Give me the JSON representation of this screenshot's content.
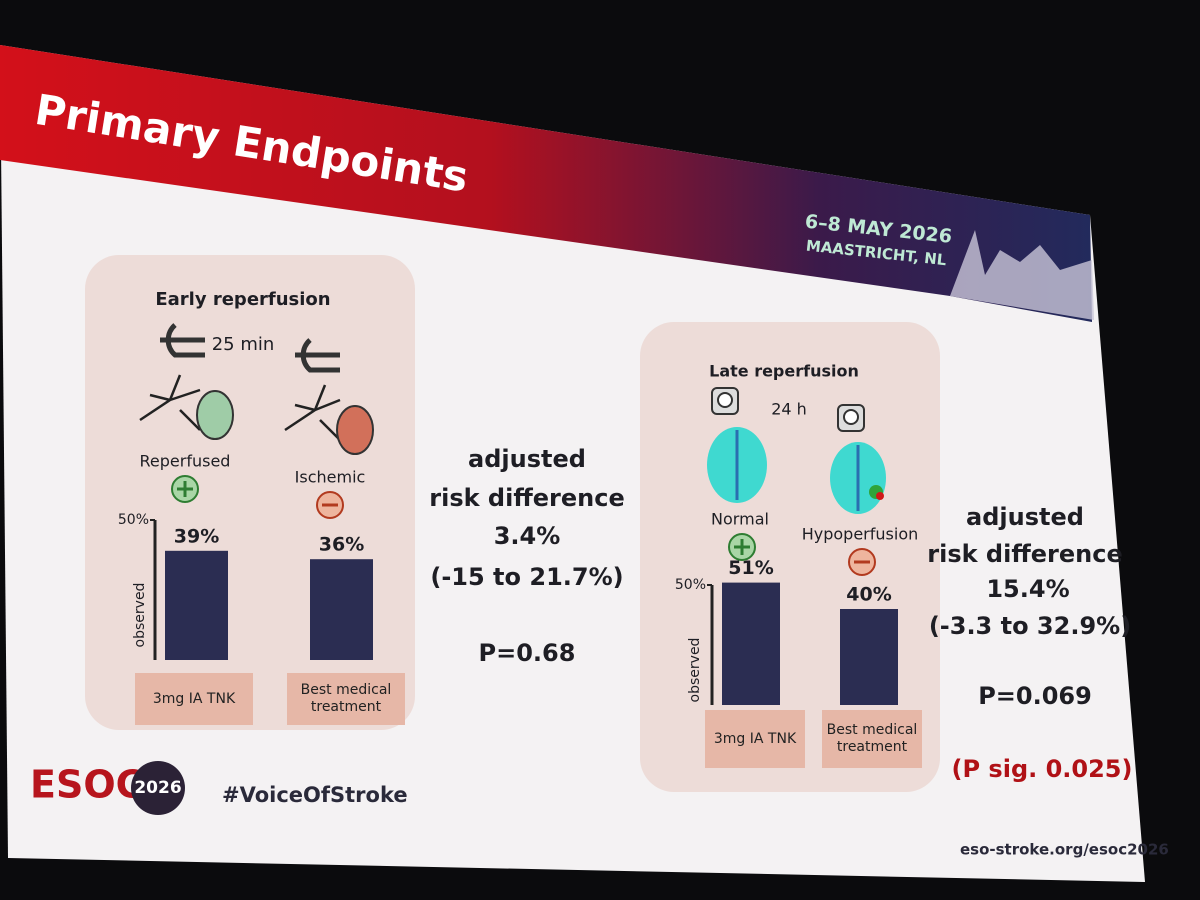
{
  "header": {
    "title": "Primary Endpoints",
    "event_date": "6–8 MAY 2026",
    "event_location": "MAASTRICHT, NL"
  },
  "panels": [
    {
      "title": "Early reperfusion",
      "interval": "25 min",
      "states": [
        "Reperfused",
        "Ischemic"
      ],
      "chart": {
        "type": "bar",
        "y_label": "observed",
        "ylim": [
          0,
          50
        ],
        "yticks": [
          {
            "value": 50,
            "label": "50%"
          }
        ],
        "categories": [
          "3mg IA TNK",
          "Best medical treatment"
        ],
        "values": [
          39,
          36
        ],
        "value_labels": [
          "39%",
          "36%"
        ],
        "color": "#2b2d52"
      },
      "stats": {
        "lines": [
          "adjusted",
          "risk difference",
          "3.4%",
          "(-15 to 21.7%)"
        ],
        "p_value": "P=0.68"
      }
    },
    {
      "title": "Late reperfusion",
      "interval": "24 h",
      "states": [
        "Normal",
        "Hypoperfusion"
      ],
      "chart": {
        "type": "bar",
        "y_label": "observed",
        "ylim": [
          0,
          50
        ],
        "yticks": [
          {
            "value": 50,
            "label": "50%"
          }
        ],
        "categories": [
          "3mg IA TNK",
          "Best medical treatment"
        ],
        "values": [
          51,
          40
        ],
        "value_labels": [
          "51%",
          "40%"
        ],
        "color": "#2b2d52"
      },
      "stats": {
        "lines": [
          "adjusted",
          "risk difference",
          "15.4%",
          "(-3.3 to 32.9%)"
        ],
        "p_value": "P=0.069",
        "note": "(P sig. 0.025)"
      }
    }
  ],
  "footer": {
    "brand": "ESOC",
    "year": "2026",
    "hashtag": "#VoiceOfStroke",
    "url": "eso-stroke.org/esoc2026"
  }
}
